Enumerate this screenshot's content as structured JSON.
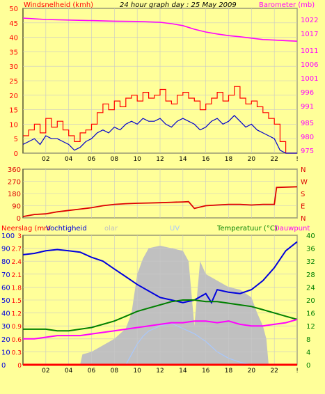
{
  "header": {
    "left_label": "Windsnelheid (kmh)",
    "title": "24 hour graph day : 25 May 2009",
    "right_label": "Barometer (mb)"
  },
  "colors": {
    "background": "#FFFF99",
    "wind_gust": "#FF0000",
    "wind_avg": "#0000CC",
    "barometer": "#FF00FF",
    "direction": "#DD0000",
    "humidity": "#0000DD",
    "temperature": "#008000",
    "dewpoint": "#FF00FF",
    "solar": "#C0C0C0",
    "uv": "#A8C8FF",
    "rain": "#FF0000",
    "grid": "#C8C8C8"
  },
  "chart_data": [
    {
      "id": "wind_baro",
      "type": "line",
      "xlabel": "",
      "x_tick_labels": [
        "02",
        "04",
        "06",
        "08",
        "10",
        "12",
        "14",
        "16",
        "18",
        "20",
        "22",
        "!"
      ],
      "y_left": {
        "label": "Windsnelheid (kmh)",
        "lim": [
          0,
          50
        ],
        "ticks": [
          0,
          5,
          10,
          15,
          20,
          25,
          30,
          35,
          40,
          45,
          50
        ]
      },
      "y_right": {
        "label": "Barometer (mb)",
        "lim": [
          974,
          1026
        ],
        "ticks": [
          975,
          980,
          985,
          991,
          996,
          1001,
          1006,
          1011,
          1017,
          1022
        ]
      },
      "series": [
        {
          "axis": "left",
          "color": "#FF0000",
          "x": [
            0,
            0.5,
            1,
            1.5,
            2,
            2.5,
            3,
            3.5,
            4,
            4.5,
            5,
            5.5,
            6,
            6.5,
            7,
            7.5,
            8,
            8.5,
            9,
            9.5,
            10,
            10.5,
            11,
            11.5,
            12,
            12.5,
            13,
            13.5,
            14,
            14.5,
            15,
            15.5,
            16,
            16.5,
            17,
            17.5,
            18,
            18.5,
            19,
            19.5,
            20,
            20.5,
            21,
            21.5,
            22,
            22.5,
            23,
            23.5,
            24
          ],
          "values": [
            6,
            8,
            10,
            7,
            12,
            9,
            11,
            8,
            6,
            4,
            7,
            8,
            10,
            14,
            17,
            15,
            18,
            16,
            19,
            20,
            18,
            21,
            19,
            20,
            22,
            18,
            17,
            20,
            21,
            19,
            18,
            15,
            17,
            19,
            21,
            18,
            20,
            23,
            19,
            17,
            18,
            16,
            14,
            12,
            10,
            4,
            0,
            0,
            0
          ]
        },
        {
          "axis": "left",
          "color": "#0000CC",
          "x": [
            0,
            0.5,
            1,
            1.5,
            2,
            2.5,
            3,
            3.5,
            4,
            4.5,
            5,
            5.5,
            6,
            6.5,
            7,
            7.5,
            8,
            8.5,
            9,
            9.5,
            10,
            10.5,
            11,
            11.5,
            12,
            12.5,
            13,
            13.5,
            14,
            14.5,
            15,
            15.5,
            16,
            16.5,
            17,
            17.5,
            18,
            18.5,
            19,
            19.5,
            20,
            20.5,
            21,
            21.5,
            22,
            22.5,
            23,
            23.5,
            24
          ],
          "values": [
            3,
            4,
            5,
            3,
            6,
            5,
            5,
            4,
            3,
            1,
            2,
            4,
            5,
            7,
            8,
            7,
            9,
            8,
            10,
            11,
            10,
            12,
            11,
            11,
            12,
            10,
            9,
            11,
            12,
            11,
            10,
            8,
            9,
            11,
            12,
            10,
            11,
            13,
            11,
            9,
            10,
            8,
            7,
            6,
            5,
            1,
            0,
            0,
            0
          ]
        },
        {
          "axis": "right",
          "color": "#FF00FF",
          "x": [
            0,
            2,
            4,
            6,
            8,
            10,
            12,
            13,
            14,
            15,
            16,
            17,
            18,
            19,
            20,
            21,
            22,
            23,
            24
          ],
          "values": [
            1022.5,
            1022.0,
            1021.8,
            1021.6,
            1021.4,
            1021.3,
            1021.0,
            1020.5,
            1019.8,
            1018.5,
            1017.5,
            1016.8,
            1016.2,
            1015.8,
            1015.3,
            1014.8,
            1014.6,
            1014.4,
            1014.2
          ]
        }
      ]
    },
    {
      "id": "direction",
      "type": "line",
      "y_left": {
        "lim": [
          0,
          360
        ],
        "ticks": [
          0,
          90,
          180,
          270,
          360
        ]
      },
      "y_right": {
        "labels": [
          "N",
          "W",
          "S",
          "E",
          "N"
        ]
      },
      "series": [
        {
          "color": "#DD0000",
          "x": [
            0,
            1,
            2,
            3,
            4,
            5,
            6,
            7,
            8,
            9,
            10,
            11,
            12,
            13,
            14,
            14.5,
            15,
            16,
            17,
            18,
            19,
            20,
            21,
            22,
            22.2,
            24
          ],
          "values": [
            10,
            25,
            30,
            45,
            55,
            65,
            75,
            90,
            100,
            105,
            108,
            110,
            112,
            115,
            118,
            120,
            70,
            90,
            95,
            100,
            100,
            95,
            100,
            100,
            225,
            230
          ]
        }
      ]
    },
    {
      "id": "temp_hum",
      "type": "line",
      "x_tick_labels": [
        "02",
        "04",
        "06",
        "08",
        "10",
        "12",
        "14",
        "16",
        "18",
        "20",
        "22",
        "!"
      ],
      "header_labels": [
        "Neerslag (mm",
        "Vochtigheid",
        "olar",
        "UV",
        "Temperatuur (°C)",
        "Dauwpunt"
      ],
      "y_left_humidity": {
        "lim": [
          0,
          100
        ],
        "ticks": [
          0,
          10,
          20,
          30,
          40,
          50,
          60,
          70,
          80,
          90,
          100
        ]
      },
      "y_left_rain": {
        "lim": [
          0,
          3
        ],
        "ticks": [
          0,
          0.3,
          0.6,
          0.9,
          1.2,
          1.5,
          1.8,
          2.1,
          2.4,
          2.7,
          3
        ]
      },
      "y_right": {
        "lim": [
          0,
          40
        ],
        "ticks": [
          0,
          4,
          8,
          12,
          16,
          20,
          24,
          28,
          32,
          36,
          40
        ]
      },
      "series": [
        {
          "name": "Vochtigheid",
          "axis": "humidity",
          "color": "#0000DD",
          "x": [
            0,
            1,
            2,
            3,
            4,
            5,
            6,
            7,
            8,
            9,
            10,
            11,
            12,
            13,
            14,
            15,
            16,
            16.5,
            17,
            18,
            19,
            20,
            21,
            22,
            23,
            24
          ],
          "values": [
            85,
            86,
            88,
            89,
            88,
            87,
            83,
            80,
            74,
            68,
            62,
            57,
            52,
            50,
            48,
            50,
            55,
            48,
            58,
            56,
            55,
            58,
            65,
            75,
            88,
            95
          ]
        },
        {
          "name": "Temperatuur (°C)",
          "axis": "right",
          "color": "#008000",
          "x": [
            0,
            1,
            2,
            3,
            4,
            5,
            6,
            7,
            8,
            9,
            10,
            11,
            12,
            13,
            14,
            15,
            16,
            17,
            18,
            19,
            20,
            21,
            22,
            23,
            24
          ],
          "values": [
            11,
            11,
            11,
            10.5,
            10.5,
            11,
            11.5,
            12.5,
            13.5,
            15,
            16.5,
            17.5,
            18.5,
            19.5,
            20,
            20,
            19.5,
            19.5,
            19,
            18.5,
            18,
            17,
            16,
            15,
            14
          ]
        },
        {
          "name": "Dauwpunt",
          "axis": "right",
          "color": "#FF00FF",
          "x": [
            0,
            1,
            2,
            3,
            4,
            5,
            6,
            7,
            8,
            9,
            10,
            11,
            12,
            13,
            14,
            15,
            16,
            17,
            18,
            19,
            20,
            21,
            22,
            23,
            24
          ],
          "values": [
            8,
            8,
            8.5,
            9,
            9,
            9,
            9.5,
            10,
            10.5,
            11,
            11.5,
            12,
            12.5,
            13,
            13,
            13.5,
            13.5,
            13,
            13.5,
            12.5,
            12,
            12,
            12.5,
            13,
            14
          ]
        },
        {
          "name": "Neerslag (mm",
          "axis": "rain",
          "color": "#FF0000",
          "x": [
            0,
            24
          ],
          "values": [
            0,
            0
          ]
        }
      ],
      "solar": {
        "color": "#C0C0C0",
        "x": [
          0,
          5,
          5.2,
          6,
          7,
          8,
          9,
          9.5,
          10,
          10.5,
          11,
          12,
          13,
          14,
          14.5,
          15,
          15.5,
          16,
          17,
          18,
          19,
          20,
          20.5,
          21,
          21.3,
          21.5,
          24
        ],
        "values": [
          0,
          0,
          8,
          10,
          15,
          20,
          28,
          40,
          70,
          82,
          90,
          92,
          90,
          88,
          80,
          30,
          80,
          70,
          65,
          60,
          58,
          52,
          40,
          30,
          20,
          0,
          0
        ]
      },
      "uv": {
        "color": "#A8C8FF",
        "x": [
          0,
          9,
          9.5,
          10,
          10.5,
          11,
          12,
          13,
          14,
          15,
          16,
          17,
          18,
          19,
          20,
          21,
          24
        ],
        "values": [
          0,
          0,
          8,
          16,
          22,
          26,
          30,
          32,
          28,
          24,
          18,
          10,
          5,
          2,
          0,
          0,
          0
        ]
      }
    }
  ]
}
